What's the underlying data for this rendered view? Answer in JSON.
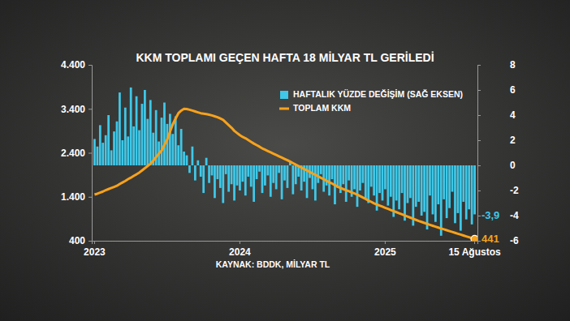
{
  "chart_data": {
    "type": "bar",
    "title": "KKM TOPLAMI GEÇEN HAFTA 18 MİLYAR TL GERİLEDİ",
    "source": "KAYNAK: BDDK, MİLYAR TL",
    "categories": [
      "2023",
      null,
      null,
      null,
      null,
      null,
      null,
      null,
      null,
      null,
      null,
      null,
      null,
      null,
      null,
      null,
      null,
      null,
      null,
      null,
      null,
      null,
      null,
      null,
      null,
      null,
      null,
      null,
      null,
      null,
      null,
      null,
      null,
      null,
      null,
      null,
      null,
      null,
      null,
      null,
      null,
      null,
      null,
      null,
      null,
      null,
      null,
      null,
      null,
      null,
      null,
      null,
      "2024",
      null,
      null,
      null,
      null,
      null,
      null,
      null,
      null,
      null,
      null,
      null,
      null,
      null,
      null,
      null,
      null,
      null,
      null,
      null,
      null,
      null,
      null,
      null,
      null,
      null,
      null,
      null,
      null,
      null,
      null,
      null,
      null,
      null,
      null,
      null,
      null,
      null,
      null,
      null,
      null,
      null,
      null,
      null,
      null,
      null,
      null,
      null,
      null,
      null,
      null,
      null,
      "2025",
      null,
      null,
      null,
      null,
      null,
      null,
      null,
      null,
      null,
      null,
      null,
      null,
      null,
      null,
      null,
      null,
      null,
      null,
      null,
      null,
      null,
      null,
      null,
      null,
      null,
      null,
      null,
      null,
      null,
      null,
      null,
      "15 Ağustos"
    ],
    "series": [
      {
        "name": "HAFTALIK YÜZDE DEĞİŞİM (SAĞ EKSEN)",
        "type": "bar",
        "axis": "y2",
        "color": "#3fc8e8",
        "values": [
          2.1,
          1.5,
          3.2,
          1.8,
          2.4,
          4.0,
          1.2,
          2.7,
          3.5,
          5.8,
          2.0,
          4.6,
          2.3,
          6.2,
          3.1,
          5.5,
          2.8,
          4.9,
          6.0,
          3.7,
          5.2,
          2.6,
          4.4,
          1.9,
          3.8,
          5.0,
          3.3,
          4.1,
          2.5,
          3.9,
          1.6,
          2.9,
          1.1,
          0.8,
          -0.6,
          1.5,
          -1.2,
          0.4,
          -0.9,
          -2.2,
          0.6,
          -1.4,
          -0.8,
          -2.6,
          -1.1,
          -1.8,
          -3.0,
          -0.7,
          -2.1,
          -1.5,
          -2.8,
          -1.6,
          -2.0,
          -1.3,
          -2.4,
          -0.9,
          -1.7,
          -2.9,
          -1.1,
          -0.5,
          -2.2,
          -1.6,
          -0.8,
          -2.5,
          -1.4,
          -1.9,
          -0.6,
          -2.7,
          -1.2,
          -1.8,
          0.3,
          -2.3,
          -1.5,
          -0.9,
          -2.0,
          -1.3,
          -2.6,
          -1.0,
          -1.9,
          -2.8,
          -1.4,
          -0.7,
          -2.1,
          -1.6,
          -2.4,
          -1.1,
          -3.1,
          -1.8,
          -2.2,
          -1.5,
          -2.9,
          -1.2,
          -2.5,
          -1.9,
          -3.3,
          -2.0,
          -1.4,
          -2.7,
          -3.0,
          -1.7,
          -2.4,
          -3.6,
          -2.2,
          -2.8,
          -1.9,
          -3.2,
          -2.5,
          -4.1,
          -2.8,
          -3.5,
          -2.2,
          -4.4,
          -3.0,
          -2.6,
          -4.8,
          -3.3,
          -2.9,
          -4.0,
          -3.7,
          -5.1,
          -2.4,
          -3.9,
          -4.5,
          -3.1,
          -5.6,
          -2.7,
          -4.2,
          -3.4,
          -2.1,
          -4.6,
          -3.8,
          -5.2,
          -2.9,
          -4.3,
          -3.5,
          -4.7,
          -3.9
        ],
        "value_labels": [
          null,
          null,
          null,
          null,
          null,
          null,
          null,
          null,
          null,
          null,
          null,
          null,
          null,
          null,
          null,
          null,
          null,
          null,
          null,
          null,
          null,
          null,
          null,
          null,
          null,
          null,
          null,
          null,
          null,
          null,
          null,
          null,
          null,
          null,
          null,
          null,
          null,
          null,
          null,
          null,
          null,
          null,
          null,
          null,
          null,
          null,
          null,
          null,
          null,
          null,
          null,
          null,
          null,
          null,
          null,
          null,
          null,
          null,
          null,
          null,
          null,
          null,
          null,
          null,
          null,
          null,
          null,
          null,
          null,
          null,
          null,
          null,
          null,
          null,
          null,
          null,
          null,
          null,
          null,
          null,
          null,
          null,
          null,
          null,
          null,
          null,
          null,
          null,
          null,
          null,
          null,
          null,
          null,
          null,
          null,
          null,
          null,
          null,
          null,
          null,
          null,
          null,
          null,
          null,
          null,
          null,
          null,
          null,
          null,
          null,
          null,
          null,
          null,
          null,
          null,
          null,
          null,
          null,
          null,
          null,
          null,
          null,
          null,
          null,
          null,
          null,
          null,
          null,
          null,
          null,
          null,
          null,
          null,
          null,
          null,
          null,
          "-3,9"
        ]
      },
      {
        "name": "TOPLAM KKM",
        "type": "line",
        "color": "#f7a21b",
        "values": [
          1450,
          1470,
          1495,
          1520,
          1550,
          1575,
          1600,
          1625,
          1650,
          1690,
          1725,
          1760,
          1800,
          1835,
          1875,
          1910,
          1950,
          2000,
          2050,
          2100,
          2150,
          2220,
          2300,
          2380,
          2450,
          2580,
          2700,
          2880,
          3050,
          3180,
          3300,
          3360,
          3400,
          3395,
          3380,
          3360,
          3340,
          3320,
          3300,
          3290,
          3280,
          3265,
          3250,
          3230,
          3210,
          3180,
          3150,
          3090,
          3030,
          2970,
          2900,
          2850,
          2800,
          2760,
          2730,
          2690,
          2650,
          2610,
          2575,
          2540,
          2500,
          2470,
          2440,
          2410,
          2380,
          2350,
          2320,
          2290,
          2260,
          2230,
          2200,
          2165,
          2130,
          2100,
          2065,
          2030,
          2000,
          1965,
          1930,
          1900,
          1865,
          1830,
          1800,
          1765,
          1730,
          1700,
          1665,
          1630,
          1600,
          1575,
          1550,
          1525,
          1500,
          1475,
          1450,
          1415,
          1385,
          1350,
          1315,
          1285,
          1250,
          1225,
          1200,
          1175,
          1150,
          1125,
          1100,
          1075,
          1050,
          1025,
          1000,
          975,
          950,
          925,
          900,
          875,
          850,
          828,
          806,
          784,
          762,
          741,
          720,
          700,
          680,
          660,
          640,
          620,
          600,
          580,
          560,
          540,
          520,
          500,
          480,
          459,
          441
        ],
        "value_labels": [
          null,
          null,
          null,
          null,
          null,
          null,
          null,
          null,
          null,
          null,
          null,
          null,
          null,
          null,
          null,
          null,
          null,
          null,
          null,
          null,
          null,
          null,
          null,
          null,
          null,
          null,
          null,
          null,
          null,
          null,
          null,
          null,
          null,
          null,
          null,
          null,
          null,
          null,
          null,
          null,
          null,
          null,
          null,
          null,
          null,
          null,
          null,
          null,
          null,
          null,
          null,
          null,
          null,
          null,
          null,
          null,
          null,
          null,
          null,
          null,
          null,
          null,
          null,
          null,
          null,
          null,
          null,
          null,
          null,
          null,
          null,
          null,
          null,
          null,
          null,
          null,
          null,
          null,
          null,
          null,
          null,
          null,
          null,
          null,
          null,
          null,
          null,
          null,
          null,
          null,
          null,
          null,
          null,
          null,
          null,
          null,
          null,
          null,
          null,
          null,
          null,
          null,
          null,
          null,
          null,
          null,
          null,
          null,
          null,
          null,
          null,
          null,
          null,
          null,
          null,
          null,
          null,
          null,
          null,
          null,
          null,
          null,
          null,
          null,
          null,
          null,
          null,
          null,
          null,
          null,
          null,
          null,
          null,
          null,
          null,
          null,
          "441"
        ]
      }
    ],
    "ylim": [
      400,
      4400
    ],
    "yticks": [
      400,
      {
        "value": 1400,
        "label": "1.400"
      },
      {
        "value": 2400,
        "label": "2.400"
      },
      {
        "value": 3400,
        "label": "3.400"
      },
      {
        "value": 4400,
        "label": "4.400"
      }
    ],
    "y2lim": [
      -6,
      8
    ],
    "y2ticks": [
      -6,
      -4,
      -2,
      0,
      2,
      4,
      6,
      8
    ],
    "grid": false,
    "legend": "top"
  }
}
